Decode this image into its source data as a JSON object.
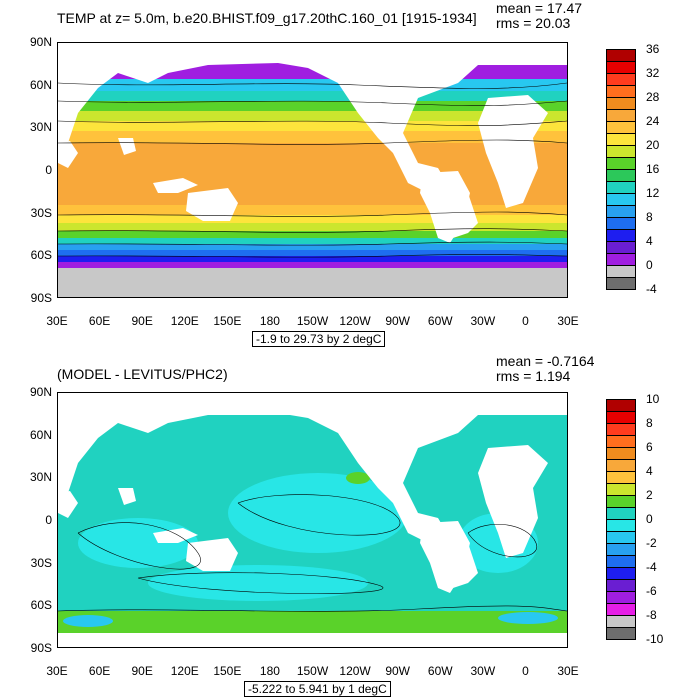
{
  "top": {
    "title": "TEMP at z=   5.0m, b.e20.BHIST.f09_g17.20thC.160_01 [1915-1934]",
    "mean": "mean = 17.47",
    "rms": "rms = 20.03",
    "range_label": "-1.9 to 29.73 by 2 degC",
    "lat_labels": [
      "90N",
      "60N",
      "30N",
      "0",
      "30S",
      "60S",
      "90S"
    ],
    "lon_labels": [
      "30E",
      "60E",
      "90E",
      "120E",
      "150E",
      "180",
      "150W",
      "120W",
      "90W",
      "60W",
      "30W",
      "0",
      "30E"
    ],
    "colorbar": {
      "labels": [
        "36",
        "32",
        "28",
        "24",
        "20",
        "16",
        "12",
        "8",
        "4",
        "0",
        "-4"
      ],
      "colors": [
        "#b00000",
        "#e80000",
        "#ff3c1e",
        "#ff6e1e",
        "#f08c1e",
        "#f8a83a",
        "#ffc23c",
        "#fde43c",
        "#cbe62e",
        "#5ad22a",
        "#2cc85a",
        "#20d2c0",
        "#28c8f0",
        "#28a0f0",
        "#1e6ef0",
        "#1e1ef0",
        "#6a1ed2",
        "#a01ee0",
        "#c8c8c8",
        "#6e6e6e"
      ]
    }
  },
  "bottom": {
    "title": "(MODEL - LEVITUS/PHC2)",
    "mean": "mean = -0.7164",
    "rms": "rms = 1.194",
    "range_label": "-5.222 to 5.941 by 1 degC",
    "lat_labels": [
      "90N",
      "60N",
      "30N",
      "0",
      "30S",
      "60S",
      "90S"
    ],
    "lon_labels": [
      "30E",
      "60E",
      "90E",
      "120E",
      "150E",
      "180",
      "150W",
      "120W",
      "90W",
      "60W",
      "30W",
      "0",
      "30E"
    ],
    "colorbar": {
      "labels": [
        "10",
        "8",
        "6",
        "4",
        "2",
        "0",
        "-2",
        "-4",
        "-6",
        "-8",
        "-10"
      ],
      "colors": [
        "#b00000",
        "#e80000",
        "#ff3c1e",
        "#ff6e1e",
        "#f08c1e",
        "#f8a83a",
        "#ffc23c",
        "#cbe62e",
        "#5ad22a",
        "#20d2c0",
        "#28e6e6",
        "#28c8f0",
        "#28a0f0",
        "#1e6ef0",
        "#1e1ef0",
        "#6a1ed2",
        "#a01ee0",
        "#e61ee6",
        "#c8c8c8",
        "#6e6e6e"
      ]
    }
  }
}
